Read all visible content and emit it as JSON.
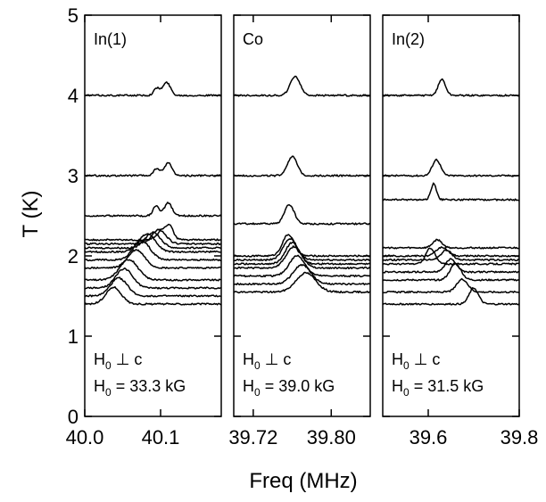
{
  "chart_data": {
    "type": "line",
    "ylabel": "T (K)",
    "xlabel": "Freq (MHz)",
    "ylim": [
      0,
      5
    ],
    "yticks": [
      "0",
      "1",
      "2",
      "3",
      "4",
      "5"
    ],
    "grid": false,
    "panels": [
      {
        "label": "In(1)",
        "xlim": [
          40.0,
          40.18
        ],
        "xticks": [
          {
            "v": 40.0,
            "label": "40.0"
          },
          {
            "v": 40.1,
            "label": "40.1"
          }
        ],
        "condition": {
          "perp_line": {
            "H": "H",
            "sub": "0",
            "rest": " ⊥ c"
          },
          "field_line": {
            "H": "H",
            "sub": "0",
            "rest": " = 33.3 kG"
          }
        },
        "peak_scale": 0.16,
        "traces": [
          {
            "T": 4.0,
            "peaks": [
              [
                40.095,
                0.004,
                0.55
              ],
              [
                40.108,
                0.005,
                1.0
              ]
            ]
          },
          {
            "T": 3.0,
            "peaks": [
              [
                40.095,
                0.004,
                0.55
              ],
              [
                40.11,
                0.005,
                1.0
              ]
            ]
          },
          {
            "T": 2.5,
            "peaks": [
              [
                40.094,
                0.004,
                0.75
              ],
              [
                40.11,
                0.005,
                1.0
              ]
            ]
          },
          {
            "T": 2.2,
            "peaks": [
              [
                40.105,
                0.008,
                0.9
              ],
              [
                40.113,
                0.004,
                0.6
              ]
            ]
          },
          {
            "T": 2.15,
            "peaks": [
              [
                40.098,
                0.009,
                1.1
              ]
            ]
          },
          {
            "T": 2.1,
            "peaks": [
              [
                40.09,
                0.01,
                1.2
              ]
            ]
          },
          {
            "T": 2.05,
            "peaks": [
              [
                40.082,
                0.011,
                1.4
              ]
            ]
          },
          {
            "T": 1.95,
            "peaks": [
              [
                40.075,
                0.011,
                1.5
              ]
            ]
          },
          {
            "T": 1.85,
            "peaks": [
              [
                40.068,
                0.011,
                1.4
              ]
            ]
          },
          {
            "T": 1.7,
            "peaks": [
              [
                40.058,
                0.012,
                1.6
              ]
            ]
          },
          {
            "T": 1.6,
            "peaks": [
              [
                40.052,
                0.011,
                1.5
              ]
            ]
          },
          {
            "T": 1.5,
            "peaks": [
              [
                40.045,
                0.011,
                1.4
              ]
            ]
          },
          {
            "T": 1.4,
            "peaks": [
              [
                40.038,
                0.01,
                1.3
              ]
            ]
          }
        ]
      },
      {
        "label": "Co",
        "xlim": [
          39.7,
          39.84
        ],
        "xticks": [
          {
            "v": 39.72,
            "label": "39.72"
          },
          {
            "v": 39.8,
            "label": "39.80"
          }
        ],
        "condition": {
          "perp_line": {
            "H": "H",
            "sub": "0",
            "rest": " ⊥ c"
          },
          "field_line": {
            "H": "H",
            "sub": "0",
            "rest": " = 39.0 kG"
          }
        },
        "peak_scale": 0.28,
        "traces": [
          {
            "T": 4.0,
            "peaks": [
              [
                39.763,
                0.005,
                0.85
              ]
            ]
          },
          {
            "T": 3.0,
            "peaks": [
              [
                39.76,
                0.005,
                0.85
              ]
            ]
          },
          {
            "T": 2.4,
            "peaks": [
              [
                39.757,
                0.005,
                0.85
              ]
            ]
          },
          {
            "T": 2.0,
            "peaks": [
              [
                39.756,
                0.006,
                0.95
              ]
            ]
          },
          {
            "T": 1.95,
            "peaks": [
              [
                39.758,
                0.007,
                0.95
              ]
            ]
          },
          {
            "T": 1.9,
            "peaks": [
              [
                39.76,
                0.007,
                0.95
              ]
            ]
          },
          {
            "T": 1.85,
            "peaks": [
              [
                39.762,
                0.008,
                0.95
              ]
            ]
          },
          {
            "T": 1.75,
            "peaks": [
              [
                39.765,
                0.008,
                0.9
              ]
            ]
          },
          {
            "T": 1.65,
            "peaks": [
              [
                39.77,
                0.009,
                0.85
              ]
            ]
          },
          {
            "T": 1.55,
            "peaks": [
              [
                39.774,
                0.01,
                0.85
              ]
            ]
          }
        ]
      },
      {
        "label": "In(2)",
        "xlim": [
          39.5,
          39.8
        ],
        "xticks": [
          {
            "v": 39.6,
            "label": "39.6"
          },
          {
            "v": 39.8,
            "label": "39.8"
          }
        ],
        "condition": {
          "perp_line": {
            "H": "H",
            "sub": "0",
            "rest": " ⊥ c"
          },
          "field_line": {
            "H": "H",
            "sub": "0",
            "rest": " = 31.5 kG"
          }
        },
        "peak_scale": 0.2,
        "traces": [
          {
            "T": 4.0,
            "peaks": [
              [
                39.63,
                0.008,
                1.0
              ]
            ]
          },
          {
            "T": 3.0,
            "peaks": [
              [
                39.618,
                0.009,
                1.0
              ]
            ]
          },
          {
            "T": 2.7,
            "peaks": [
              [
                39.612,
                0.006,
                1.0
              ]
            ]
          },
          {
            "T": 2.1,
            "peaks": [
              [
                39.62,
                0.01,
                0.5
              ]
            ]
          },
          {
            "T": 2.0,
            "peaks": [
              [
                39.63,
                0.012,
                0.55
              ]
            ]
          },
          {
            "T": 1.95,
            "peaks": [
              [
                39.64,
                0.012,
                0.6
              ]
            ]
          },
          {
            "T": 1.9,
            "peaks": [
              [
                39.605,
                0.01,
                1.0
              ]
            ]
          },
          {
            "T": 1.8,
            "peaks": [
              [
                39.65,
                0.012,
                0.8
              ]
            ]
          },
          {
            "T": 1.7,
            "peaks": [
              [
                39.66,
                0.012,
                1.0
              ]
            ]
          },
          {
            "T": 1.55,
            "peaks": [
              [
                39.675,
                0.012,
                0.8
              ]
            ]
          },
          {
            "T": 1.4,
            "peaks": [
              [
                39.7,
                0.01,
                1.0
              ]
            ]
          }
        ]
      }
    ]
  }
}
